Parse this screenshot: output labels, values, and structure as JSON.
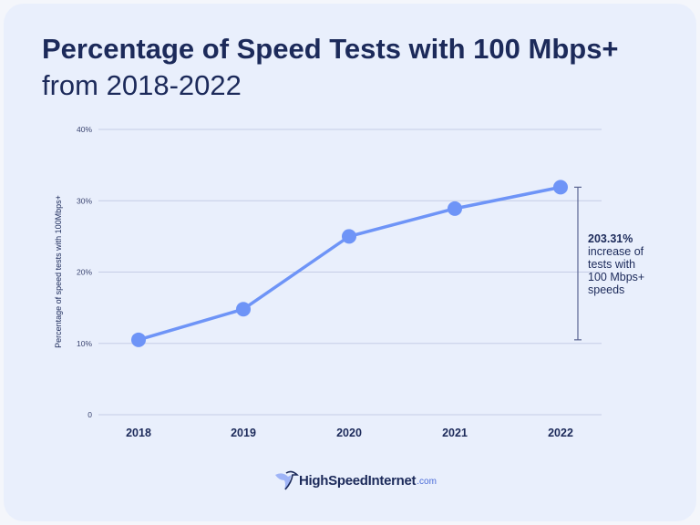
{
  "title": "Percentage of Speed Tests with 100 Mbps+",
  "subtitle": "from 2018-2022",
  "chart_data": {
    "type": "line",
    "categories": [
      "2018",
      "2019",
      "2020",
      "2021",
      "2022"
    ],
    "values": [
      10.5,
      14.8,
      25.0,
      28.9,
      31.9
    ],
    "ylabel": "Percentage of speed tests with 100Mbps+",
    "xlabel": "",
    "ylim": [
      0,
      40
    ],
    "yticks": [
      0,
      10,
      20,
      30,
      40
    ],
    "ytick_labels": [
      "0",
      "10%",
      "20%",
      "30%",
      "40%"
    ],
    "grid": true,
    "line_color": "#6e94f7",
    "annotation": {
      "value": "203.31%",
      "text": [
        "increase of",
        "tests with",
        "100 Mbps+",
        "speeds"
      ]
    }
  },
  "brand": {
    "name": "HighSpeedInternet",
    "suffix": ".com"
  }
}
